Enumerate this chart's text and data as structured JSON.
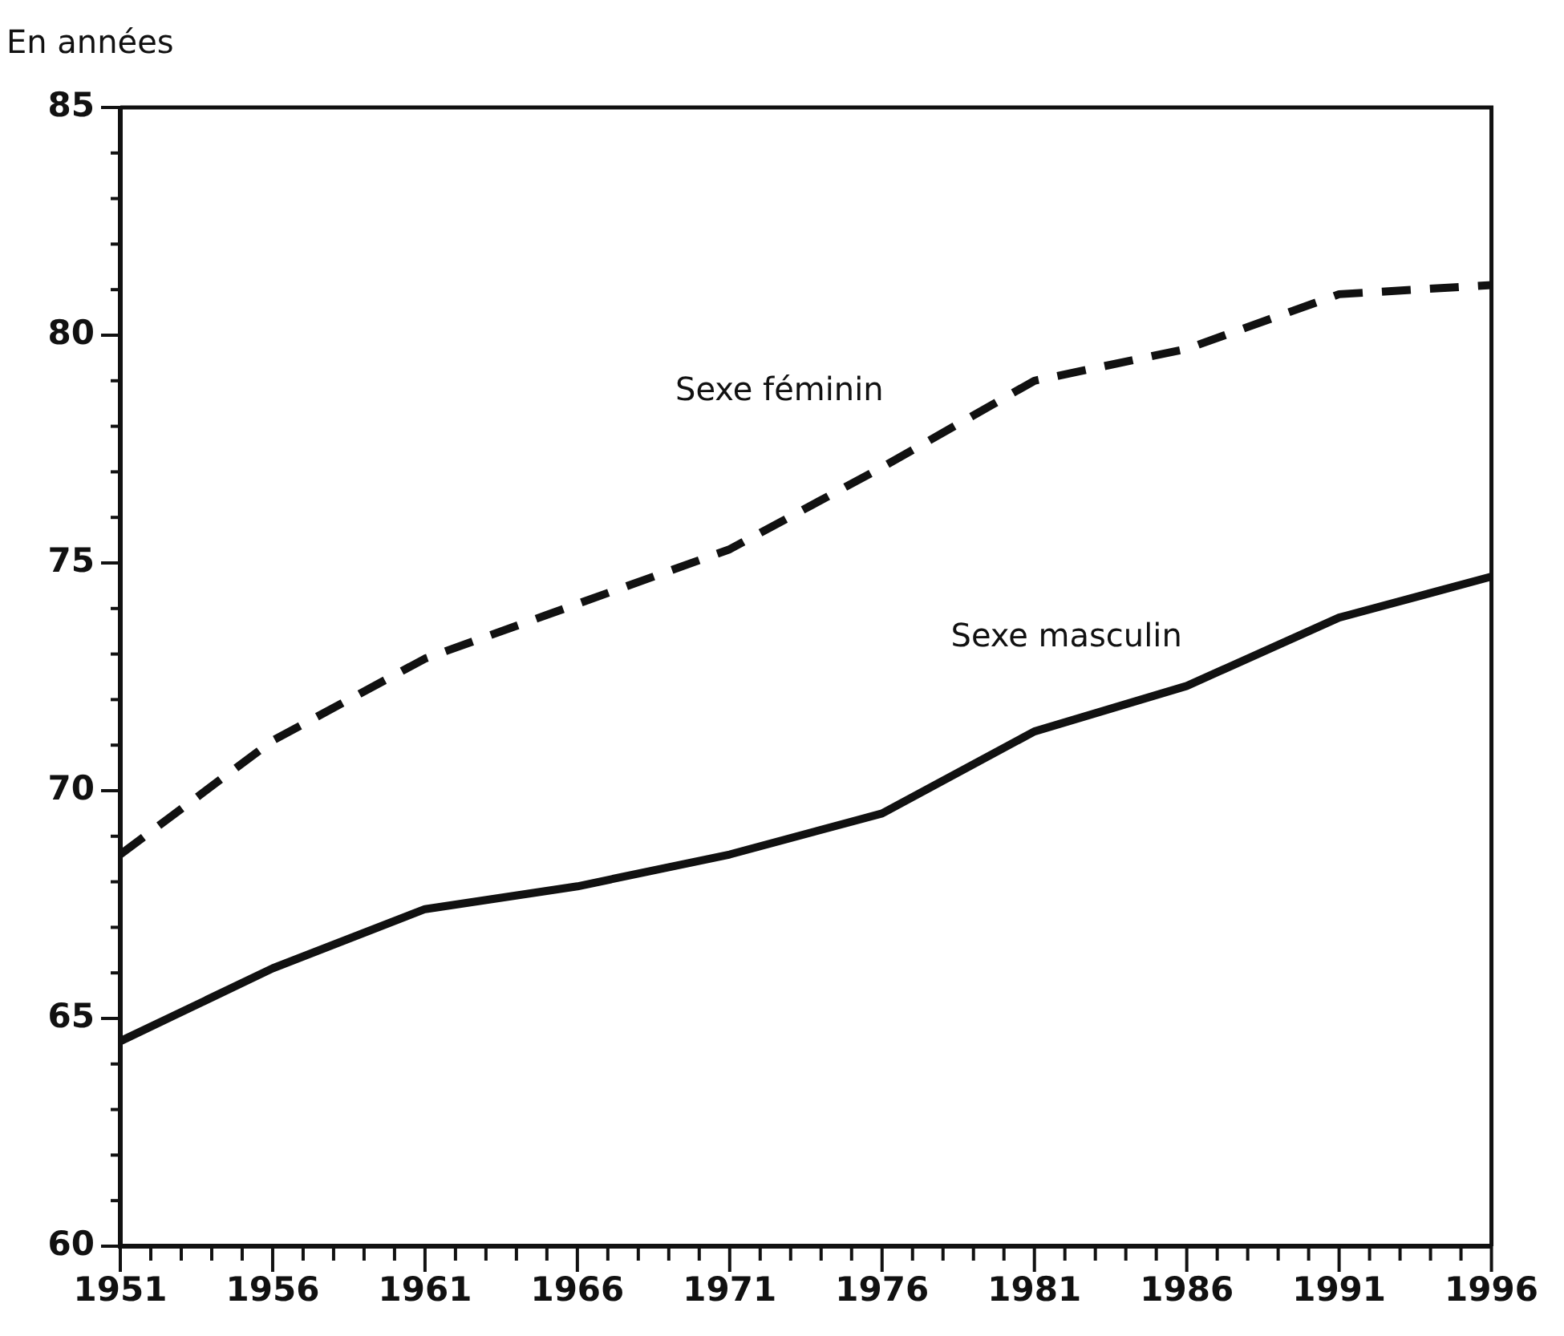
{
  "chart_data": {
    "type": "line",
    "ylabel": "En années",
    "x": [
      1951,
      1956,
      1961,
      1966,
      1971,
      1976,
      1981,
      1986,
      1991,
      1996
    ],
    "series": [
      {
        "name": "Sexe féminin",
        "color": "#111111",
        "line_style": "dashed",
        "values": [
          68.6,
          71.1,
          72.9,
          74.1,
          75.3,
          77.1,
          79.0,
          79.7,
          80.9,
          81.1
        ]
      },
      {
        "name": "Sexe masculin",
        "color": "#111111",
        "line_style": "solid",
        "values": [
          64.5,
          66.1,
          67.4,
          67.9,
          68.6,
          69.5,
          71.3,
          72.3,
          73.8,
          74.7
        ]
      }
    ],
    "xlim": [
      1951,
      1996
    ],
    "xticks": [
      1951,
      {
        "value": 1952,
        "label": null
      },
      {
        "value": 1953,
        "label": null
      },
      {
        "value": 1954,
        "label": null
      },
      {
        "value": 1955,
        "label": null
      },
      1956,
      {
        "value": 1957,
        "label": null
      },
      {
        "value": 1958,
        "label": null
      },
      {
        "value": 1959,
        "label": null
      },
      {
        "value": 1960,
        "label": null
      },
      1961,
      {
        "value": 1962,
        "label": null
      },
      {
        "value": 1963,
        "label": null
      },
      {
        "value": 1964,
        "label": null
      },
      {
        "value": 1965,
        "label": null
      },
      1966,
      {
        "value": 1967,
        "label": null
      },
      {
        "value": 1968,
        "label": null
      },
      {
        "value": 1969,
        "label": null
      },
      {
        "value": 1970,
        "label": null
      },
      1971,
      {
        "value": 1972,
        "label": null
      },
      {
        "value": 1973,
        "label": null
      },
      {
        "value": 1974,
        "label": null
      },
      {
        "value": 1975,
        "label": null
      },
      1976,
      {
        "value": 1977,
        "label": null
      },
      {
        "value": 1978,
        "label": null
      },
      {
        "value": 1979,
        "label": null
      },
      {
        "value": 1980,
        "label": null
      },
      1981,
      {
        "value": 1982,
        "label": null
      },
      {
        "value": 1983,
        "label": null
      },
      {
        "value": 1984,
        "label": null
      },
      {
        "value": 1985,
        "label": null
      },
      1986,
      {
        "value": 1987,
        "label": null
      },
      {
        "value": 1988,
        "label": null
      },
      {
        "value": 1989,
        "label": null
      },
      {
        "value": 1990,
        "label": null
      },
      1991,
      {
        "value": 1992,
        "label": null
      },
      {
        "value": 1993,
        "label": null
      },
      {
        "value": 1994,
        "label": null
      },
      {
        "value": 1995,
        "label": null
      },
      1996
    ],
    "ylim": [
      60,
      85
    ],
    "yticks": [
      60,
      {
        "value": 61,
        "label": null
      },
      {
        "value": 62,
        "label": null
      },
      {
        "value": 63,
        "label": null
      },
      {
        "value": 64,
        "label": null
      },
      65,
      {
        "value": 66,
        "label": null
      },
      {
        "value": 67,
        "label": null
      },
      {
        "value": 68,
        "label": null
      },
      {
        "value": 69,
        "label": null
      },
      70,
      {
        "value": 71,
        "label": null
      },
      {
        "value": 72,
        "label": null
      },
      {
        "value": 73,
        "label": null
      },
      {
        "value": 74,
        "label": null
      },
      75,
      {
        "value": 76,
        "label": null
      },
      {
        "value": 77,
        "label": null
      },
      {
        "value": 78,
        "label": null
      },
      {
        "value": 79,
        "label": null
      },
      80,
      {
        "value": 81,
        "label": null
      },
      {
        "value": 82,
        "label": null
      },
      {
        "value": 83,
        "label": null
      },
      {
        "value": 84,
        "label": null
      },
      85
    ],
    "grid": false,
    "legend": false,
    "marker": "none"
  }
}
